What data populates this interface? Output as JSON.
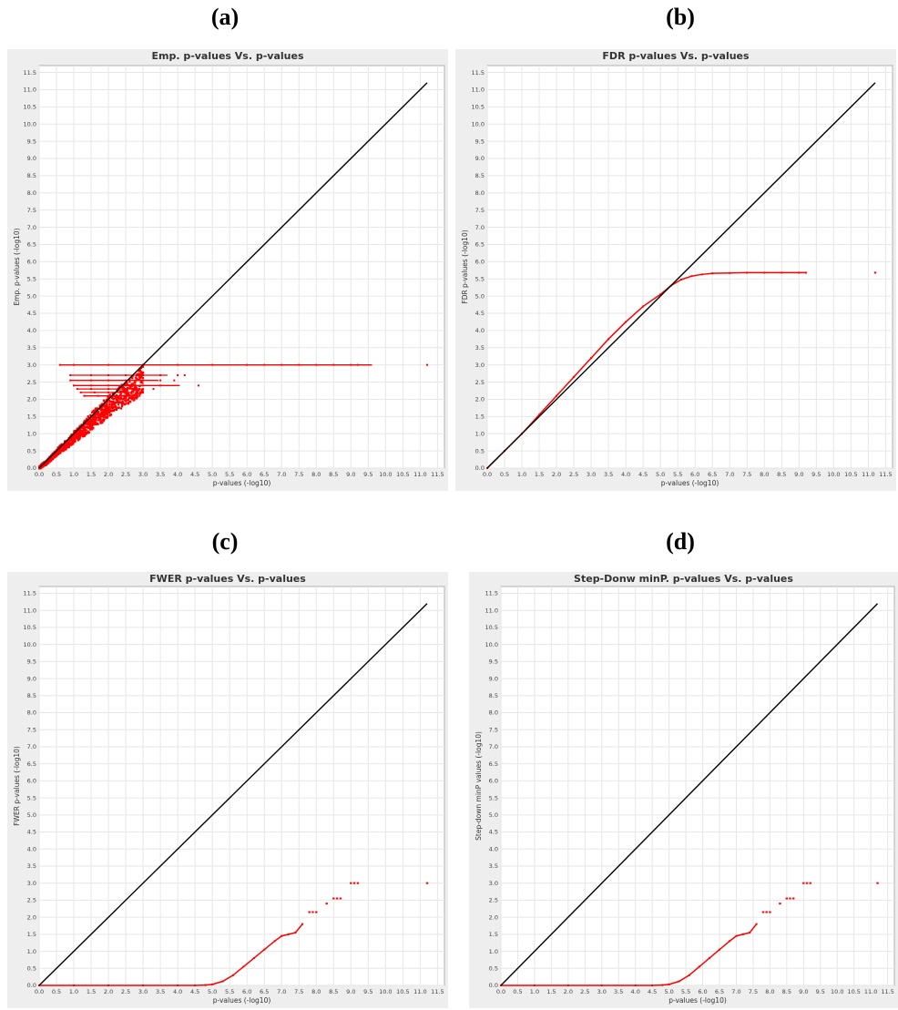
{
  "panels": [
    {
      "letter": "(a)",
      "chart_data": {
        "type": "scatter",
        "title": "Emp. p-values Vs. p-values",
        "xlabel": "p-values (-log10)",
        "ylabel": "Emp. p-values (-log10)",
        "xlim": [
          0,
          11.7
        ],
        "ylim": [
          0,
          11.7
        ],
        "xticks": [
          "0.0",
          "0.5",
          "1.0",
          "1.5",
          "2.0",
          "2.5",
          "3.0",
          "3.5",
          "4.0",
          "4.5",
          "5.0",
          "5.5",
          "6.0",
          "6.5",
          "7.0",
          "7.5",
          "8.0",
          "8.5",
          "9.0",
          "9.5",
          "10.0",
          "10.5",
          "11.0",
          "11.5"
        ],
        "yticks": [
          "0.0",
          "0.5",
          "1.0",
          "1.5",
          "2.0",
          "2.5",
          "3.0",
          "3.5",
          "4.0",
          "4.5",
          "5.0",
          "5.5",
          "6.0",
          "6.5",
          "7.0",
          "7.5",
          "8.0",
          "8.5",
          "9.0",
          "9.5",
          "10.0",
          "10.5",
          "11.0",
          "11.5"
        ],
        "grid": true,
        "reference_line": {
          "x": [
            0,
            11.2
          ],
          "y": [
            0,
            11.2
          ],
          "color": "#000000"
        },
        "series": [
          {
            "color": "#ff0000",
            "kind": "point_cloud",
            "x": [
              0.0,
              0.1,
              0.2,
              0.3,
              0.4,
              0.5,
              0.6,
              0.8,
              1.0,
              1.2,
              1.4,
              1.6,
              1.8,
              2.0,
              2.2,
              2.4,
              2.6,
              2.8,
              3.0
            ],
            "y": [
              0.0,
              0.1,
              0.15,
              0.25,
              0.35,
              0.45,
              0.55,
              0.7,
              0.9,
              1.05,
              1.25,
              1.45,
              1.6,
              1.8,
              1.95,
              2.1,
              2.25,
              2.4,
              2.6
            ]
          },
          {
            "color": "#ff0000",
            "kind": "plateau",
            "x": [
              0.6,
              1.0,
              2.0,
              3.0,
              4.0,
              5.0,
              6.0,
              6.5,
              7.0,
              7.5,
              8.0,
              8.5,
              9.0,
              9.2,
              11.2
            ],
            "y": [
              3.0,
              3.0,
              3.0,
              3.0,
              3.0,
              3.0,
              3.0,
              3.0,
              3.0,
              3.0,
              3.0,
              3.0,
              3.0,
              3.0,
              3.0
            ]
          },
          {
            "color": "#ff0000",
            "kind": "plateau",
            "x": [
              0.9,
              1.5,
              2.0,
              2.5,
              3.0,
              3.5,
              4.0,
              4.2
            ],
            "y": [
              2.7,
              2.7,
              2.7,
              2.7,
              2.7,
              2.7,
              2.7,
              2.7
            ]
          },
          {
            "color": "#ff0000",
            "kind": "plateau",
            "x": [
              0.9,
              1.5,
              2.0,
              2.5,
              3.0,
              3.5,
              3.9
            ],
            "y": [
              2.55,
              2.55,
              2.55,
              2.55,
              2.55,
              2.55,
              2.55
            ]
          },
          {
            "color": "#ff0000",
            "kind": "plateau",
            "x": [
              1.0,
              1.5,
              2.0,
              2.5,
              3.0,
              3.5,
              4.6
            ],
            "y": [
              2.4,
              2.4,
              2.4,
              2.4,
              2.4,
              2.4,
              2.4
            ]
          },
          {
            "color": "#ff0000",
            "kind": "plateau",
            "x": [
              1.1,
              1.5,
              2.0,
              2.5,
              3.0,
              3.3
            ],
            "y": [
              2.3,
              2.3,
              2.3,
              2.3,
              2.3,
              2.3
            ]
          },
          {
            "color": "#ff0000",
            "kind": "plateau",
            "x": [
              1.2,
              1.6,
              2.0,
              2.5,
              3.0
            ],
            "y": [
              2.2,
              2.2,
              2.2,
              2.2,
              2.2
            ]
          },
          {
            "color": "#ff0000",
            "kind": "plateau",
            "x": [
              1.3,
              1.7,
              2.0,
              2.5,
              2.9
            ],
            "y": [
              2.1,
              2.1,
              2.1,
              2.1,
              2.1
            ]
          }
        ]
      }
    },
    {
      "letter": "(b)",
      "chart_data": {
        "type": "scatter",
        "title": "FDR p-values Vs. p-values",
        "xlabel": "p-values (-log10)",
        "ylabel": "FDR p-values (-log10)",
        "xlim": [
          0,
          11.7
        ],
        "ylim": [
          0,
          11.7
        ],
        "xticks": [
          "0.0",
          "0.5",
          "1.0",
          "1.5",
          "2.0",
          "2.5",
          "3.0",
          "3.5",
          "4.0",
          "4.5",
          "5.0",
          "5.5",
          "6.0",
          "6.5",
          "7.0",
          "7.5",
          "8.0",
          "8.5",
          "9.0",
          "9.5",
          "10.0",
          "10.5",
          "11.0",
          "11.5"
        ],
        "yticks": [
          "0.0",
          "0.5",
          "1.0",
          "1.5",
          "2.0",
          "2.5",
          "3.0",
          "3.5",
          "4.0",
          "4.5",
          "5.0",
          "5.5",
          "6.0",
          "6.5",
          "7.0",
          "7.5",
          "8.0",
          "8.5",
          "9.0",
          "9.5",
          "10.0",
          "10.5",
          "11.0",
          "11.5"
        ],
        "grid": true,
        "reference_line": {
          "x": [
            0,
            11.2
          ],
          "y": [
            0,
            11.2
          ],
          "color": "#000000"
        },
        "series": [
          {
            "color": "#ff0000",
            "kind": "curve",
            "x": [
              0.0,
              0.5,
              1.0,
              1.5,
              2.0,
              2.5,
              3.0,
              3.5,
              4.0,
              4.5,
              5.0,
              5.3,
              5.6,
              5.9,
              6.2,
              6.5,
              7.0,
              7.5,
              8.0,
              8.5,
              9.0,
              9.2
            ],
            "y": [
              0.0,
              0.5,
              1.0,
              1.55,
              2.1,
              2.65,
              3.2,
              3.75,
              4.25,
              4.7,
              5.05,
              5.3,
              5.48,
              5.58,
              5.63,
              5.66,
              5.67,
              5.68,
              5.68,
              5.68,
              5.68,
              5.68
            ]
          },
          {
            "color": "#ff0000",
            "kind": "points",
            "x": [
              11.2
            ],
            "y": [
              5.68
            ]
          }
        ]
      }
    },
    {
      "letter": "(c)",
      "chart_data": {
        "type": "scatter",
        "title": "FWER p-values Vs. p-values",
        "xlabel": "p-values (-log10)",
        "ylabel": "FWER p-values (-log10)",
        "xlim": [
          0,
          11.7
        ],
        "ylim": [
          0,
          11.7
        ],
        "xticks": [
          "0.0",
          "0.5",
          "1.0",
          "1.5",
          "2.0",
          "2.5",
          "3.0",
          "3.5",
          "4.0",
          "4.5",
          "5.0",
          "5.5",
          "6.0",
          "6.5",
          "7.0",
          "7.5",
          "8.0",
          "8.5",
          "9.0",
          "9.5",
          "10.0",
          "10.5",
          "11.0",
          "11.5"
        ],
        "yticks": [
          "0.0",
          "0.5",
          "1.0",
          "1.5",
          "2.0",
          "2.5",
          "3.0",
          "3.5",
          "4.0",
          "4.5",
          "5.0",
          "5.5",
          "6.0",
          "6.5",
          "7.0",
          "7.5",
          "8.0",
          "8.5",
          "9.0",
          "9.5",
          "10.0",
          "10.5",
          "11.0",
          "11.5"
        ],
        "grid": true,
        "reference_line": {
          "x": [
            0,
            11.2
          ],
          "y": [
            0,
            11.2
          ],
          "color": "#000000"
        },
        "series": [
          {
            "color": "#ff0000",
            "kind": "curve",
            "x": [
              0.0,
              1.0,
              2.0,
              3.0,
              4.0,
              4.5,
              4.8,
              5.0,
              5.3,
              5.6,
              5.9,
              6.2,
              6.5,
              6.8,
              7.0,
              7.2,
              7.4,
              7.6
            ],
            "y": [
              0.0,
              0.0,
              0.0,
              0.0,
              0.0,
              0.0,
              0.01,
              0.03,
              0.12,
              0.3,
              0.55,
              0.8,
              1.05,
              1.3,
              1.45,
              1.5,
              1.55,
              1.8
            ]
          },
          {
            "color": "#ff0000",
            "kind": "points",
            "x": [
              7.8,
              7.9,
              8.0,
              8.3,
              8.5,
              8.6,
              8.7,
              9.0,
              9.1,
              9.2,
              11.2
            ],
            "y": [
              2.15,
              2.15,
              2.15,
              2.4,
              2.55,
              2.55,
              2.55,
              3.0,
              3.0,
              3.0,
              3.0
            ]
          }
        ]
      }
    },
    {
      "letter": "(d)",
      "chart_data": {
        "type": "scatter",
        "title": "Step-Donw minP. p-values Vs. p-values",
        "xlabel": "p-values (-log10)",
        "ylabel": "Step-down minP values (-log10)",
        "xlim": [
          0,
          11.7
        ],
        "ylim": [
          0,
          11.7
        ],
        "xticks": [
          "0.0",
          "0.5",
          "1.0",
          "1.5",
          "2.0",
          "2.5",
          "3.0",
          "3.5",
          "4.0",
          "4.5",
          "5.0",
          "5.5",
          "6.0",
          "6.5",
          "7.0",
          "7.5",
          "8.0",
          "8.5",
          "9.0",
          "9.5",
          "10.0",
          "10.5",
          "11.0",
          "11.5"
        ],
        "yticks": [
          "0.0",
          "0.5",
          "1.0",
          "1.5",
          "2.0",
          "2.5",
          "3.0",
          "3.5",
          "4.0",
          "4.5",
          "5.0",
          "5.5",
          "6.0",
          "6.5",
          "7.0",
          "7.5",
          "8.0",
          "8.5",
          "9.0",
          "9.5",
          "10.0",
          "10.5",
          "11.0",
          "11.5"
        ],
        "grid": true,
        "reference_line": {
          "x": [
            0,
            11.2
          ],
          "y": [
            0,
            11.2
          ],
          "color": "#000000"
        },
        "series": [
          {
            "color": "#ff0000",
            "kind": "curve",
            "x": [
              0.0,
              1.0,
              2.0,
              3.0,
              4.0,
              4.5,
              4.8,
              5.0,
              5.3,
              5.6,
              5.9,
              6.2,
              6.5,
              6.8,
              7.0,
              7.2,
              7.4,
              7.6
            ],
            "y": [
              0.0,
              0.0,
              0.0,
              0.0,
              0.0,
              0.0,
              0.01,
              0.03,
              0.12,
              0.3,
              0.55,
              0.8,
              1.05,
              1.3,
              1.45,
              1.5,
              1.55,
              1.8
            ]
          },
          {
            "color": "#ff0000",
            "kind": "points",
            "x": [
              7.8,
              7.9,
              8.0,
              8.3,
              8.5,
              8.6,
              8.7,
              9.0,
              9.1,
              9.2,
              11.2
            ],
            "y": [
              2.15,
              2.15,
              2.15,
              2.4,
              2.55,
              2.55,
              2.55,
              3.0,
              3.0,
              3.0,
              3.0
            ]
          }
        ]
      }
    }
  ]
}
